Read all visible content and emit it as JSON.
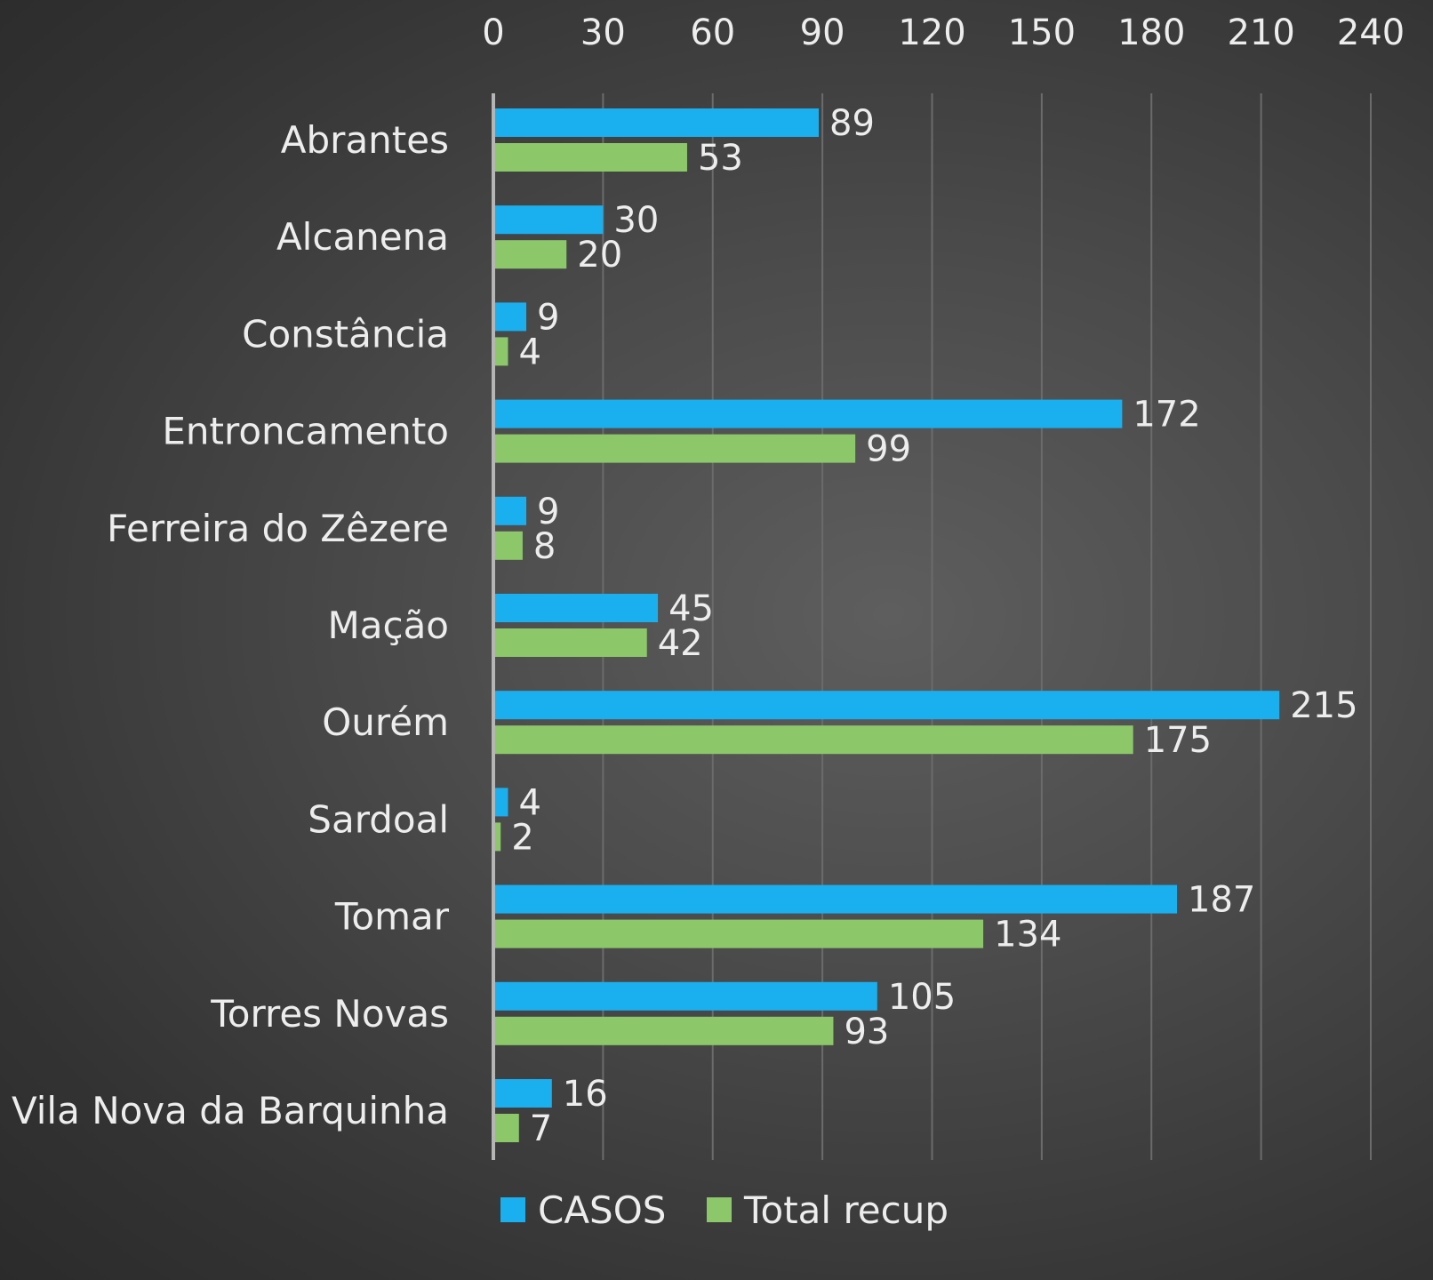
{
  "chart_data": {
    "type": "bar",
    "orientation": "horizontal",
    "categories": [
      "Abrantes",
      "Alcanena",
      "Constância",
      "Entroncamento",
      "Ferreira do Zêzere",
      "Mação",
      "Ourém",
      "Sardoal",
      "Tomar",
      "Torres Novas",
      "Vila Nova da Barquinha"
    ],
    "series": [
      {
        "name": "CASOS",
        "color": "#1ab0f0",
        "values": [
          89,
          30,
          9,
          172,
          9,
          45,
          215,
          4,
          187,
          105,
          16
        ]
      },
      {
        "name": "Total recup",
        "color": "#8cc86a",
        "values": [
          53,
          20,
          4,
          99,
          8,
          42,
          175,
          2,
          134,
          93,
          7
        ]
      }
    ],
    "xlim": [
      0,
      240
    ],
    "xticks": [
      "0",
      "30",
      "60",
      "90",
      "120",
      "150",
      "180",
      "210",
      "240"
    ],
    "xaxis_position": "top",
    "grid": true,
    "legend_position": "bottom"
  }
}
